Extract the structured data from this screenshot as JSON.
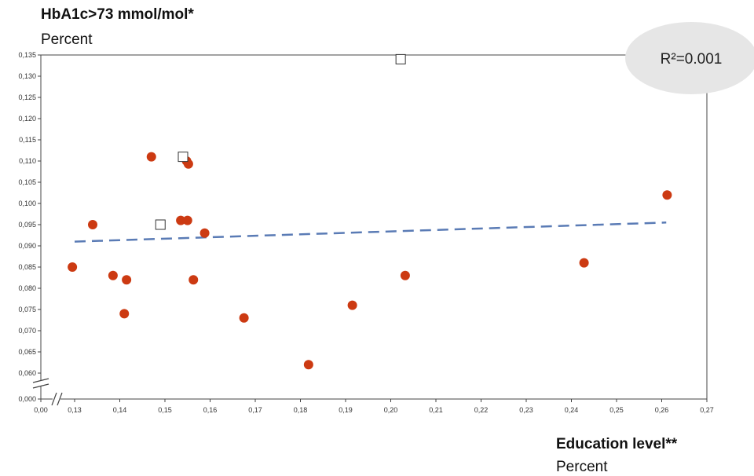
{
  "chart_data": {
    "type": "scatter",
    "title": "HbA1c>73 mmol/mol*",
    "ylabel_unit": "Percent",
    "xlabel": "Education level**",
    "xlabel_unit": "Percent",
    "annotation": "R²=0.001",
    "xlim": [
      0.0,
      0.27
    ],
    "ylim_broken": {
      "lower": 0.0,
      "upper_start": 0.06,
      "upper_end": 0.135
    },
    "x_ticks": [
      "0,00",
      "0,13",
      "0,14",
      "0,15",
      "0,16",
      "0,17",
      "0,18",
      "0,19",
      "0,20",
      "0,21",
      "0,22",
      "0,23",
      "0,24",
      "0,25",
      "0,26",
      "0,27"
    ],
    "y_ticks": [
      "0,000",
      "0,060",
      "0,065",
      "0,070",
      "0,075",
      "0,080",
      "0,085",
      "0,090",
      "0,095",
      "0,100",
      "0,105",
      "0,110",
      "0,115",
      "0,120",
      "0,125",
      "0,130",
      "0,135"
    ],
    "series": [
      {
        "marker": "circle",
        "color": "#cc3a12",
        "points": [
          [
            0.1295,
            0.085
          ],
          [
            0.134,
            0.095
          ],
          [
            0.1385,
            0.083
          ],
          [
            0.141,
            0.074
          ],
          [
            0.1415,
            0.082
          ],
          [
            0.147,
            0.111
          ],
          [
            0.1535,
            0.096
          ],
          [
            0.1548,
            0.11
          ],
          [
            0.155,
            0.096
          ],
          [
            0.1552,
            0.1093
          ],
          [
            0.1563,
            0.082
          ],
          [
            0.1588,
            0.093
          ],
          [
            0.1675,
            0.073
          ],
          [
            0.1818,
            0.062
          ],
          [
            0.1915,
            0.076
          ],
          [
            0.2032,
            0.083
          ],
          [
            0.2428,
            0.086
          ],
          [
            0.2612,
            0.102
          ]
        ]
      },
      {
        "marker": "square",
        "color": "#ffffff",
        "points": [
          [
            0.149,
            0.095
          ],
          [
            0.154,
            0.111
          ],
          [
            0.2022,
            0.134
          ]
        ]
      }
    ],
    "trendline": {
      "style": "dashed",
      "color": "#5a7bb5",
      "points": [
        [
          0.13,
          0.091
        ],
        [
          0.261,
          0.0955
        ]
      ]
    }
  }
}
